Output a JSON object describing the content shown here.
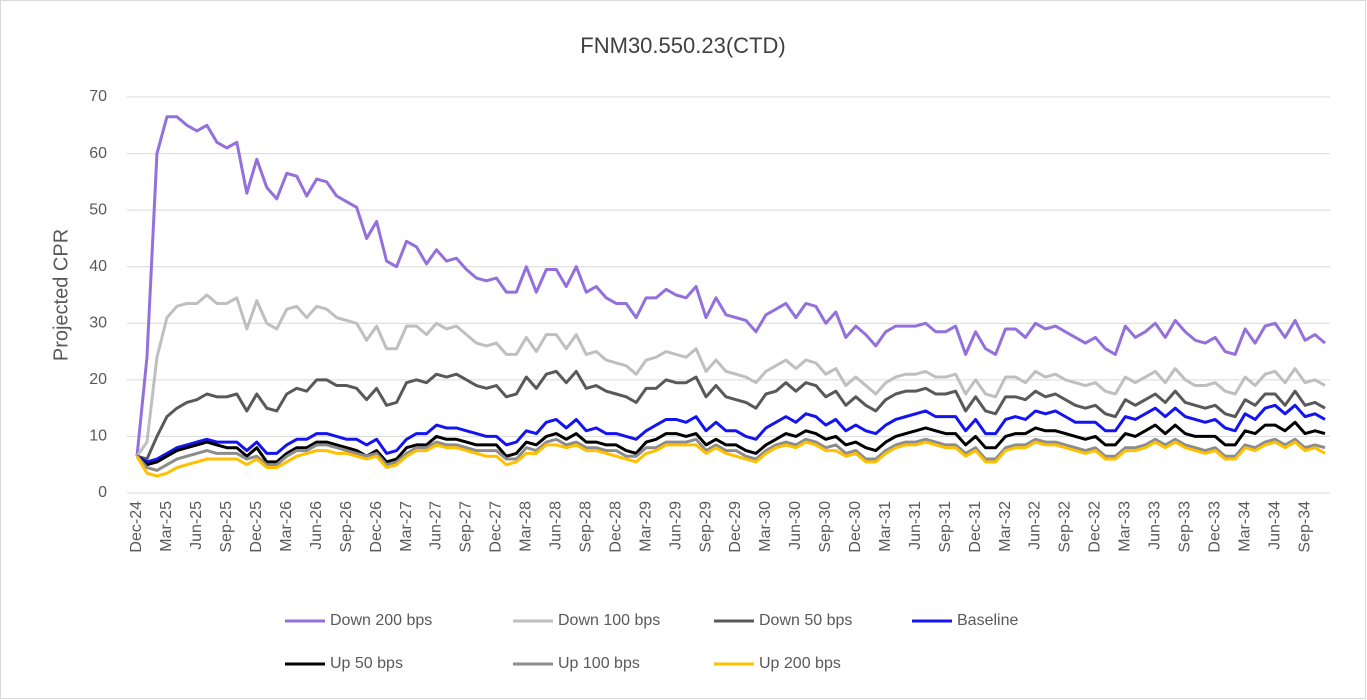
{
  "chart_data": {
    "type": "line",
    "title": "FNM30.550.23(CTD)",
    "y_label": "Projected CPR",
    "categories": [
      "Dec-24",
      null,
      null,
      "Mar-25",
      null,
      null,
      "Jun-25",
      null,
      null,
      "Sep-25",
      null,
      null,
      "Dec-25",
      null,
      null,
      "Mar-26",
      null,
      null,
      "Jun-26",
      null,
      null,
      "Sep-26",
      null,
      null,
      "Dec-26",
      null,
      null,
      "Mar-27",
      null,
      null,
      "Jun-27",
      null,
      null,
      "Sep-27",
      null,
      null,
      "Dec-27",
      null,
      null,
      "Mar-28",
      null,
      null,
      "Jun-28",
      null,
      null,
      "Sep-28",
      null,
      null,
      "Dec-28",
      null,
      null,
      "Mar-29",
      null,
      null,
      "Jun-29",
      null,
      null,
      "Sep-29",
      null,
      null,
      "Dec-29",
      null,
      null,
      "Mar-30",
      null,
      null,
      "Jun-30",
      null,
      null,
      "Sep-30",
      null,
      null,
      "Dec-30",
      null,
      null,
      "Mar-31",
      null,
      null,
      "Jun-31",
      null,
      null,
      "Sep-31",
      null,
      null,
      "Dec-31",
      null,
      null,
      "Mar-32",
      null,
      null,
      "Jun-32",
      null,
      null,
      "Sep-32",
      null,
      null,
      "Dec-32",
      null,
      null,
      "Mar-33",
      null,
      null,
      "Jun-33",
      null,
      null,
      "Sep-33",
      null,
      null,
      "Dec-33",
      null,
      null,
      "Mar-34",
      null,
      null,
      "Jun-34",
      null,
      null,
      "Sep-34",
      null,
      null
    ],
    "series": [
      {
        "name": "Down 200 bps",
        "color": "#9370db",
        "values": [
          6.5,
          24,
          60,
          66.5,
          66.5,
          65,
          64,
          65,
          62,
          61,
          62,
          53,
          59,
          54,
          52,
          56.5,
          56,
          52.5,
          55.5,
          55,
          52.5,
          51.5,
          50.5,
          45,
          48,
          41,
          40,
          44.5,
          43.5,
          40.5,
          43,
          41,
          41.5,
          39.5,
          38,
          37.5,
          38,
          35.5,
          35.5,
          40,
          35.5,
          39.5,
          39.5,
          36.5,
          40,
          35.5,
          36.5,
          34.5,
          33.5,
          33.5,
          31,
          34.5,
          34.5,
          36,
          35,
          34.5,
          36.5,
          31,
          34.5,
          31.5,
          31,
          30.5,
          28.5,
          31.5,
          32.5,
          33.5,
          31,
          33.5,
          33,
          30,
          32,
          27.5,
          29.5,
          28,
          26,
          28.5,
          29.5,
          29.5,
          29.5,
          30,
          28.5,
          28.5,
          29.5,
          24.5,
          28.5,
          25.5,
          24.5,
          29,
          29,
          27.5,
          30,
          29,
          29.5,
          28.5,
          27.5,
          26.5,
          27.5,
          25.5,
          24.5,
          29.5,
          27.5,
          28.5,
          30,
          27.5,
          30.5,
          28.5,
          27,
          26.5,
          27.5,
          25,
          24.5,
          29,
          26.5,
          29.5,
          30,
          27.5,
          30.5,
          27,
          28,
          26.5
        ]
      },
      {
        "name": "Down 100 bps",
        "color": "#bfbfbf",
        "values": [
          6.5,
          9,
          24,
          31,
          33,
          33.5,
          33.5,
          35,
          33.5,
          33.5,
          34.5,
          29,
          34,
          30,
          29,
          32.5,
          33,
          31,
          33,
          32.5,
          31,
          30.5,
          30,
          27,
          29.5,
          25.5,
          25.5,
          29.5,
          29.5,
          28,
          30,
          29,
          29.5,
          28,
          26.5,
          26,
          26.5,
          24.5,
          24.5,
          27.5,
          25,
          28,
          28,
          25.5,
          28,
          24.5,
          25,
          23.5,
          23,
          22.5,
          21,
          23.5,
          24,
          25,
          24.5,
          24,
          25.5,
          21.5,
          23.5,
          21.5,
          21,
          20.5,
          19.5,
          21.5,
          22.5,
          23.5,
          22,
          23.5,
          23,
          21,
          22,
          19,
          20.5,
          19,
          17.5,
          19.5,
          20.5,
          21,
          21,
          21.5,
          20.5,
          20.5,
          21,
          17.5,
          20,
          17.5,
          17,
          20.5,
          20.5,
          19.5,
          21.5,
          20.5,
          21,
          20,
          19.5,
          19,
          19.5,
          18,
          17.5,
          20.5,
          19.5,
          20.5,
          21.5,
          19.5,
          22,
          20,
          19,
          19,
          19.5,
          18,
          17.5,
          20.5,
          19,
          21,
          21.5,
          19.5,
          22,
          19.5,
          20,
          19
        ]
      },
      {
        "name": "Down 50 bps",
        "color": "#595959",
        "values": [
          6.5,
          6,
          10,
          13.5,
          15,
          16,
          16.5,
          17.5,
          17,
          17,
          17.5,
          14.5,
          17.5,
          15,
          14.5,
          17.5,
          18.5,
          18,
          20,
          20,
          19,
          19,
          18.5,
          16.5,
          18.5,
          15.5,
          16,
          19.5,
          20,
          19.5,
          21,
          20.5,
          21,
          20,
          19,
          18.5,
          19,
          17,
          17.5,
          20.5,
          18.5,
          21,
          21.5,
          19.5,
          21.5,
          18.5,
          19,
          18,
          17.5,
          17,
          16,
          18.5,
          18.5,
          20,
          19.5,
          19.5,
          20.5,
          17,
          19,
          17,
          16.5,
          16,
          15,
          17.5,
          18,
          19.5,
          18,
          19.5,
          19,
          17,
          18,
          15.5,
          17,
          15.5,
          14.5,
          16.5,
          17.5,
          18,
          18,
          18.5,
          17.5,
          17.5,
          18,
          14.5,
          17,
          14.5,
          14,
          17,
          17,
          16.5,
          18,
          17,
          17.5,
          16.5,
          15.5,
          15,
          15.5,
          14,
          13.5,
          16.5,
          15.5,
          16.5,
          17.5,
          16,
          18,
          16,
          15.5,
          15,
          15.5,
          14,
          13.5,
          16.5,
          15.5,
          17.5,
          17.5,
          15.5,
          18,
          15.5,
          16,
          15
        ]
      },
      {
        "name": "Baseline",
        "color": "#1414f0",
        "values": [
          6.5,
          5.5,
          6,
          7,
          8,
          8.5,
          9,
          9.5,
          9,
          9,
          9,
          7.5,
          9,
          7,
          7,
          8.5,
          9.5,
          9.5,
          10.5,
          10.5,
          10,
          9.5,
          9.5,
          8.5,
          9.5,
          7,
          7.5,
          9.5,
          10.5,
          10.5,
          12,
          11.5,
          11.5,
          11,
          10.5,
          10,
          10,
          8.5,
          9,
          11,
          10.5,
          12.5,
          13,
          11.5,
          13,
          11,
          11.5,
          10.5,
          10.5,
          10,
          9.5,
          11,
          12,
          13,
          13,
          12.5,
          13.5,
          11,
          12.5,
          11,
          11,
          10,
          9.5,
          11.5,
          12.5,
          13.5,
          12.5,
          14,
          13.5,
          12,
          13,
          11,
          12,
          11,
          10.5,
          12,
          13,
          13.5,
          14,
          14.5,
          13.5,
          13.5,
          13.5,
          11,
          13,
          10.5,
          10.5,
          13,
          13.5,
          13,
          14.5,
          14,
          14.5,
          13.5,
          12.5,
          12.5,
          12.5,
          11,
          11,
          13.5,
          13,
          14,
          15,
          13.5,
          15,
          13.5,
          13,
          12.5,
          13,
          11.5,
          11,
          14,
          13,
          15,
          15.5,
          14,
          15.5,
          13.5,
          14,
          13
        ]
      },
      {
        "name": "Up 50 bps",
        "color": "#000000",
        "values": [
          6.5,
          5,
          5.5,
          6.5,
          7.5,
          8,
          8.5,
          9,
          8.5,
          8,
          8,
          6.5,
          8,
          5.5,
          5.5,
          7,
          8,
          8,
          9,
          9,
          8.5,
          8,
          7.5,
          6.5,
          7.5,
          5.5,
          6,
          8,
          8.5,
          8.5,
          10,
          9.5,
          9.5,
          9,
          8.5,
          8.5,
          8.5,
          6.5,
          7,
          9,
          8.5,
          10,
          10.5,
          9.5,
          10.5,
          9,
          9,
          8.5,
          8.5,
          7.5,
          7,
          9,
          9.5,
          10.5,
          10.5,
          10,
          10.5,
          8.5,
          9.5,
          8.5,
          8.5,
          7.5,
          7,
          8.5,
          9.5,
          10.5,
          10,
          11,
          10.5,
          9.5,
          10,
          8.5,
          9,
          8,
          7.5,
          9,
          10,
          10.5,
          11,
          11.5,
          11,
          10.5,
          10.5,
          8.5,
          10,
          8,
          8,
          10,
          10.5,
          10.5,
          11.5,
          11,
          11,
          10.5,
          10,
          9.5,
          10,
          8.5,
          8.5,
          10.5,
          10,
          11,
          12,
          10.5,
          12,
          10.5,
          10,
          10,
          10,
          8.5,
          8.5,
          11,
          10.5,
          12,
          12,
          11,
          12.5,
          10.5,
          11,
          10.5
        ]
      },
      {
        "name": "Up 100 bps",
        "color": "#8c8c8c",
        "values": [
          6.5,
          4.5,
          4,
          5,
          6,
          6.5,
          7,
          7.5,
          7,
          7,
          7,
          6,
          6.5,
          5,
          5,
          6.5,
          7.5,
          7.5,
          8.5,
          8.5,
          8,
          7.5,
          7,
          6.5,
          7,
          5,
          5.5,
          7,
          8,
          8,
          9,
          8.5,
          8.5,
          8,
          7.5,
          7.5,
          7.5,
          6,
          6,
          8,
          7.5,
          9,
          9.5,
          8.5,
          9,
          8,
          8,
          7.5,
          7.5,
          6.5,
          6.5,
          8,
          8,
          9,
          9,
          9,
          9.5,
          7.5,
          8.5,
          7.5,
          7.5,
          6.5,
          6,
          7.5,
          8.5,
          9,
          8.5,
          9.5,
          9,
          8,
          8.5,
          7,
          7.5,
          6,
          6,
          7.5,
          8.5,
          9,
          9,
          9.5,
          9,
          8.5,
          8.5,
          7,
          8,
          6,
          6,
          8,
          8.5,
          8.5,
          9.5,
          9,
          9,
          8.5,
          8,
          7.5,
          8,
          6.5,
          6.5,
          8,
          8,
          8.5,
          9.5,
          8.5,
          9.5,
          8.5,
          8,
          7.5,
          8,
          6.5,
          6.5,
          8.5,
          8,
          9,
          9.5,
          8.5,
          9.5,
          8,
          8.5,
          8
        ]
      },
      {
        "name": "Up 200 bps",
        "color": "#ffc000",
        "values": [
          6.5,
          3.5,
          3,
          3.5,
          4.5,
          5,
          5.5,
          6,
          6,
          6,
          6,
          5,
          6,
          4.5,
          4.5,
          5.5,
          6.5,
          7,
          7.5,
          7.5,
          7,
          7,
          6.5,
          6,
          6.5,
          4.5,
          5,
          6.5,
          7.5,
          7.5,
          8.5,
          8,
          8,
          7.5,
          7,
          6.5,
          6.5,
          5,
          5.5,
          7,
          7,
          8.5,
          8.5,
          8,
          8.5,
          7.5,
          7.5,
          7,
          6.5,
          6,
          5.5,
          7,
          7.5,
          8.5,
          8.5,
          8.5,
          8.5,
          7,
          8,
          7,
          6.5,
          6,
          5.5,
          7,
          8,
          8.5,
          8,
          9,
          8.5,
          7.5,
          7.5,
          6.5,
          7,
          5.5,
          5.5,
          7,
          8,
          8.5,
          8.5,
          9,
          8.5,
          8,
          8,
          6.5,
          7.5,
          5.5,
          5.5,
          7.5,
          8,
          8,
          9,
          8.5,
          8.5,
          8,
          7.5,
          7,
          7.5,
          6,
          6,
          7.5,
          7.5,
          8,
          9,
          8,
          9,
          8,
          7.5,
          7,
          7.5,
          6,
          6,
          8,
          7.5,
          8.5,
          9,
          8,
          9,
          7.5,
          8,
          7
        ]
      }
    ],
    "ylim": [
      0,
      70
    ],
    "yticks": [
      0,
      10,
      20,
      30,
      40,
      50,
      60,
      70
    ],
    "grid": true,
    "legend": "bottom"
  }
}
